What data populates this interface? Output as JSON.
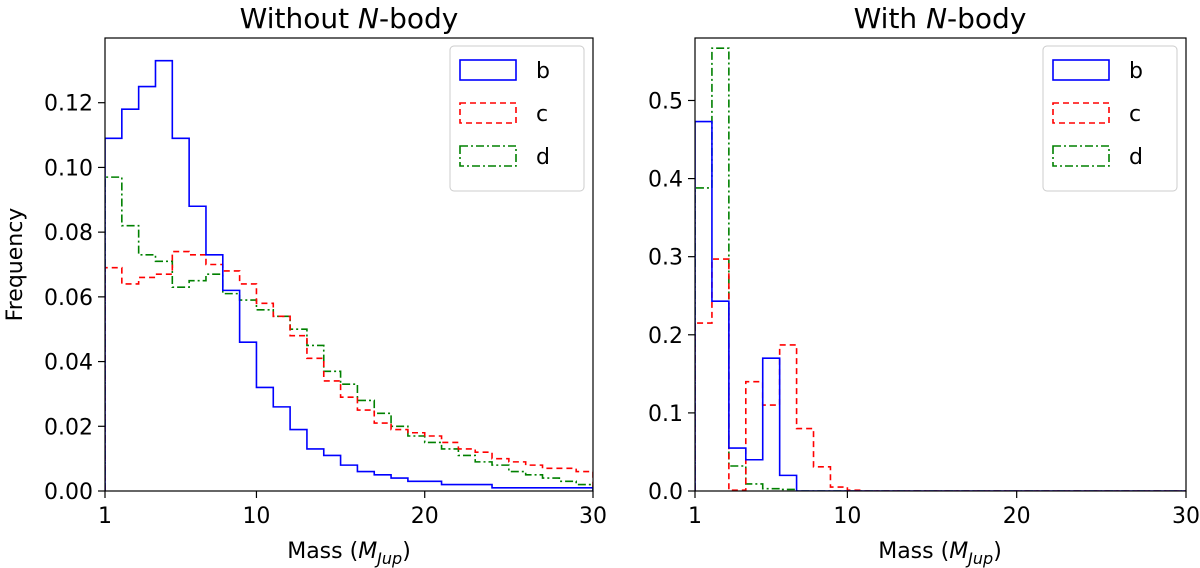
{
  "chart_data": [
    {
      "type": "histogram",
      "title_parts": [
        "Without ",
        "N",
        "-body"
      ],
      "xlabel_parts": [
        "Mass (",
        "M",
        "Jup",
        ")"
      ],
      "ylabel": "Frequency",
      "xlim": [
        1,
        30
      ],
      "ylim": [
        0,
        0.14
      ],
      "xticks": [
        1,
        10,
        20,
        30
      ],
      "xtick_labels": [
        "1",
        "10",
        "20",
        "30"
      ],
      "yticks": [
        0,
        0.02,
        0.04,
        0.06,
        0.08,
        0.1,
        0.12
      ],
      "ytick_labels": [
        "0.00",
        "0.02",
        "0.04",
        "0.06",
        "0.08",
        "0.10",
        "0.12"
      ],
      "bin_edges": [
        1,
        2,
        3,
        4,
        5,
        6,
        7,
        8,
        9,
        10,
        11,
        12,
        13,
        14,
        15,
        16,
        17,
        18,
        19,
        20,
        21,
        22,
        23,
        24,
        25,
        26,
        27,
        28,
        29,
        30
      ],
      "legend_position": "top-right",
      "series": [
        {
          "name": "b",
          "color": "#0000ff",
          "dash": "none",
          "values": [
            0.109,
            0.118,
            0.125,
            0.133,
            0.109,
            0.088,
            0.073,
            0.062,
            0.046,
            0.032,
            0.026,
            0.019,
            0.013,
            0.011,
            0.008,
            0.006,
            0.005,
            0.004,
            0.003,
            0.003,
            0.002,
            0.002,
            0.002,
            0.001,
            0.001,
            0.001,
            0.001,
            0.001,
            0.001
          ]
        },
        {
          "name": "c",
          "color": "#ff0000",
          "dash": "6,4",
          "values": [
            0.069,
            0.064,
            0.066,
            0.067,
            0.074,
            0.073,
            0.07,
            0.068,
            0.064,
            0.058,
            0.054,
            0.048,
            0.041,
            0.034,
            0.029,
            0.025,
            0.021,
            0.019,
            0.018,
            0.017,
            0.015,
            0.013,
            0.012,
            0.01,
            0.009,
            0.008,
            0.007,
            0.007,
            0.006
          ]
        },
        {
          "name": "d",
          "color": "#008000",
          "dash": "8,3,2,3",
          "values": [
            0.097,
            0.082,
            0.073,
            0.071,
            0.063,
            0.065,
            0.067,
            0.061,
            0.059,
            0.056,
            0.054,
            0.05,
            0.045,
            0.037,
            0.033,
            0.028,
            0.024,
            0.02,
            0.017,
            0.015,
            0.013,
            0.011,
            0.009,
            0.008,
            0.006,
            0.005,
            0.004,
            0.003,
            0.002
          ]
        }
      ]
    },
    {
      "type": "histogram",
      "title_parts": [
        "With ",
        "N",
        "-body"
      ],
      "xlabel_parts": [
        "Mass (",
        "M",
        "Jup",
        ")"
      ],
      "ylabel": "",
      "xlim": [
        1,
        30
      ],
      "ylim": [
        0,
        0.58
      ],
      "xticks": [
        1,
        10,
        20,
        30
      ],
      "xtick_labels": [
        "1",
        "10",
        "20",
        "30"
      ],
      "yticks": [
        0,
        0.1,
        0.2,
        0.3,
        0.4,
        0.5
      ],
      "ytick_labels": [
        "0.0",
        "0.1",
        "0.2",
        "0.3",
        "0.4",
        "0.5"
      ],
      "bin_edges": [
        1,
        2,
        3,
        4,
        5,
        6,
        7,
        8,
        9,
        10,
        11,
        12,
        13,
        14,
        15,
        16,
        17,
        18,
        19,
        20,
        21,
        22,
        23,
        24,
        25,
        26,
        27,
        28,
        29,
        30
      ],
      "legend_position": "top-right",
      "series": [
        {
          "name": "b",
          "color": "#0000ff",
          "dash": "none",
          "values": [
            0.473,
            0.243,
            0.055,
            0.04,
            0.17,
            0.02,
            0,
            0,
            0,
            0,
            0,
            0,
            0,
            0,
            0,
            0,
            0,
            0,
            0,
            0,
            0,
            0,
            0,
            0,
            0,
            0,
            0,
            0,
            0
          ]
        },
        {
          "name": "c",
          "color": "#ff0000",
          "dash": "6,4",
          "values": [
            0.215,
            0.297,
            0.001,
            0.14,
            0.11,
            0.187,
            0.08,
            0.031,
            0.005,
            0.001,
            0,
            0,
            0,
            0,
            0,
            0,
            0,
            0,
            0,
            0,
            0,
            0,
            0,
            0,
            0,
            0,
            0,
            0,
            0
          ]
        },
        {
          "name": "d",
          "color": "#008000",
          "dash": "8,3,2,3",
          "values": [
            0.388,
            0.567,
            0.032,
            0.009,
            0.003,
            0.002,
            0,
            0,
            0,
            0,
            0,
            0,
            0,
            0,
            0,
            0,
            0,
            0,
            0,
            0,
            0,
            0,
            0,
            0,
            0,
            0,
            0,
            0,
            0
          ]
        }
      ]
    }
  ]
}
